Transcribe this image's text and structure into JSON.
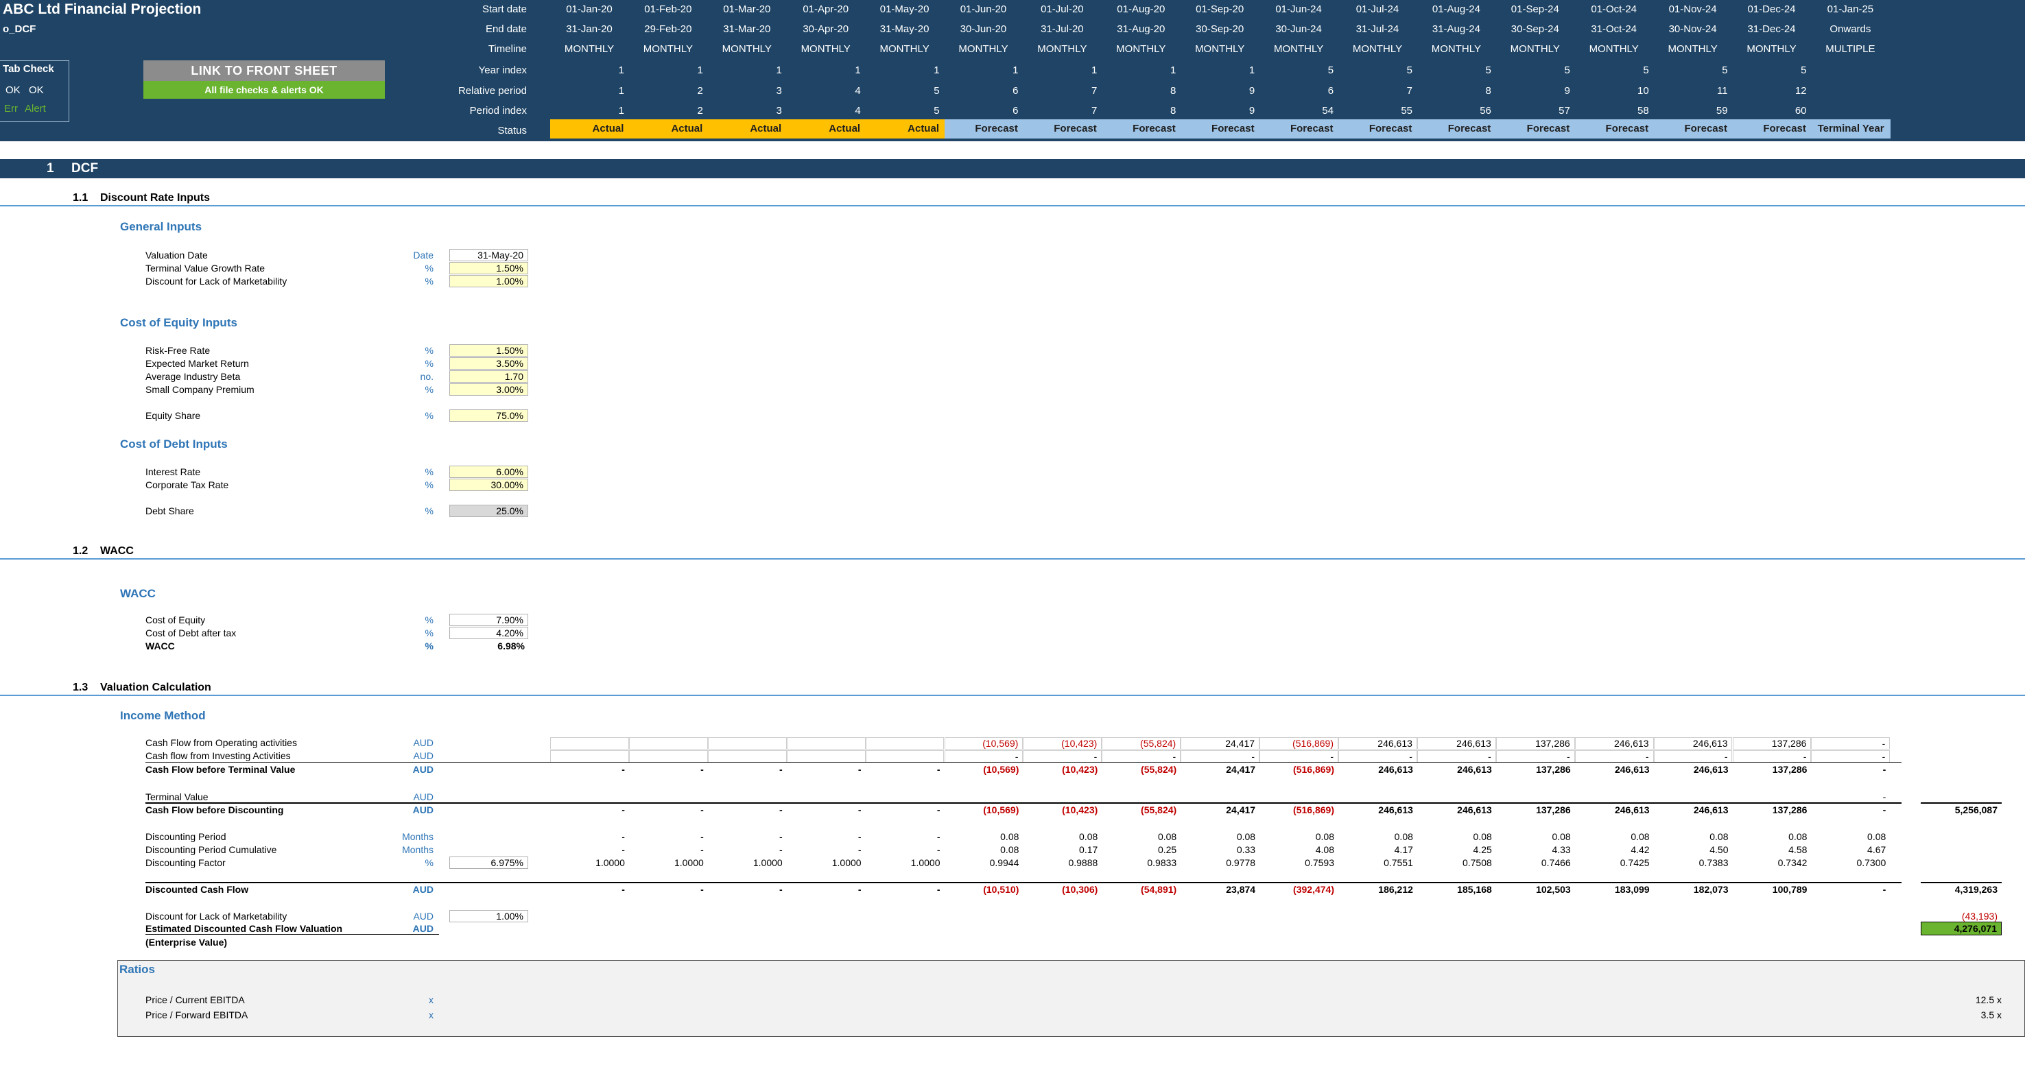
{
  "app_title": "ABC Ltd Financial Projection",
  "sheet_name": "o_DCF",
  "tab_check": {
    "title": "Tab Check",
    "ok1": "OK",
    "ok2": "OK",
    "err": "Err",
    "alert": "Alert"
  },
  "link_button": "LINK TO FRONT SHEET",
  "checks_status": "All file checks & alerts OK",
  "timeline_labels": {
    "start": "Start date",
    "end": "End date",
    "timeline": "Timeline",
    "year_index": "Year index",
    "relative": "Relative period",
    "period": "Period index",
    "status": "Status"
  },
  "periods": [
    {
      "start": "01-Jan-20",
      "end": "31-Jan-20",
      "tl": "MONTHLY",
      "yi": "1",
      "rp": "1",
      "pi": "1",
      "st": "Actual"
    },
    {
      "start": "01-Feb-20",
      "end": "29-Feb-20",
      "tl": "MONTHLY",
      "yi": "1",
      "rp": "2",
      "pi": "2",
      "st": "Actual"
    },
    {
      "start": "01-Mar-20",
      "end": "31-Mar-20",
      "tl": "MONTHLY",
      "yi": "1",
      "rp": "3",
      "pi": "3",
      "st": "Actual"
    },
    {
      "start": "01-Apr-20",
      "end": "30-Apr-20",
      "tl": "MONTHLY",
      "yi": "1",
      "rp": "4",
      "pi": "4",
      "st": "Actual"
    },
    {
      "start": "01-May-20",
      "end": "31-May-20",
      "tl": "MONTHLY",
      "yi": "1",
      "rp": "5",
      "pi": "5",
      "st": "Actual"
    },
    {
      "start": "01-Jun-20",
      "end": "30-Jun-20",
      "tl": "MONTHLY",
      "yi": "1",
      "rp": "6",
      "pi": "6",
      "st": "Forecast"
    },
    {
      "start": "01-Jul-20",
      "end": "31-Jul-20",
      "tl": "MONTHLY",
      "yi": "1",
      "rp": "7",
      "pi": "7",
      "st": "Forecast"
    },
    {
      "start": "01-Aug-20",
      "end": "31-Aug-20",
      "tl": "MONTHLY",
      "yi": "1",
      "rp": "8",
      "pi": "8",
      "st": "Forecast"
    },
    {
      "start": "01-Sep-20",
      "end": "30-Sep-20",
      "tl": "MONTHLY",
      "yi": "1",
      "rp": "9",
      "pi": "9",
      "st": "Forecast"
    },
    {
      "start": "01-Jun-24",
      "end": "30-Jun-24",
      "tl": "MONTHLY",
      "yi": "5",
      "rp": "6",
      "pi": "54",
      "st": "Forecast"
    },
    {
      "start": "01-Jul-24",
      "end": "31-Jul-24",
      "tl": "MONTHLY",
      "yi": "5",
      "rp": "7",
      "pi": "55",
      "st": "Forecast"
    },
    {
      "start": "01-Aug-24",
      "end": "31-Aug-24",
      "tl": "MONTHLY",
      "yi": "5",
      "rp": "8",
      "pi": "56",
      "st": "Forecast"
    },
    {
      "start": "01-Sep-24",
      "end": "30-Sep-24",
      "tl": "MONTHLY",
      "yi": "5",
      "rp": "9",
      "pi": "57",
      "st": "Forecast"
    },
    {
      "start": "01-Oct-24",
      "end": "31-Oct-24",
      "tl": "MONTHLY",
      "yi": "5",
      "rp": "10",
      "pi": "58",
      "st": "Forecast"
    },
    {
      "start": "01-Nov-24",
      "end": "30-Nov-24",
      "tl": "MONTHLY",
      "yi": "5",
      "rp": "11",
      "pi": "59",
      "st": "Forecast"
    },
    {
      "start": "01-Dec-24",
      "end": "31-Dec-24",
      "tl": "MONTHLY",
      "yi": "5",
      "rp": "12",
      "pi": "60",
      "st": "Forecast"
    },
    {
      "start": "01-Jan-25",
      "end": "Onwards",
      "tl": "MULTIPLE",
      "yi": "",
      "rp": "",
      "pi": "",
      "st": "Terminal Year"
    }
  ],
  "section": {
    "num": "1",
    "title": "DCF"
  },
  "sub_1_1": {
    "num": "1.1",
    "title": "Discount Rate Inputs"
  },
  "sub_1_2": {
    "num": "1.2",
    "title": "WACC"
  },
  "sub_1_3": {
    "num": "1.3",
    "title": "Valuation Calculation"
  },
  "general_inputs": {
    "title": "General Inputs",
    "rows": [
      {
        "label": "Valuation Date",
        "unit": "Date",
        "value": "31-May-20"
      },
      {
        "label": "Terminal Value Growth Rate",
        "unit": "%",
        "value": "1.50%"
      },
      {
        "label": "Discount for Lack of Marketability",
        "unit": "%",
        "value": "1.00%"
      }
    ]
  },
  "coe_inputs": {
    "title": "Cost of Equity Inputs",
    "rows": [
      {
        "label": "Risk-Free Rate",
        "unit": "%",
        "value": "1.50%"
      },
      {
        "label": "Expected Market Return",
        "unit": "%",
        "value": "3.50%"
      },
      {
        "label": "Average Industry Beta",
        "unit": "no.",
        "value": "1.70"
      },
      {
        "label": "Small Company Premium",
        "unit": "%",
        "value": "3.00%"
      }
    ],
    "equity_share": {
      "label": "Equity Share",
      "unit": "%",
      "value": "75.0%"
    }
  },
  "cod_inputs": {
    "title": "Cost of Debt Inputs",
    "rows": [
      {
        "label": "Interest Rate",
        "unit": "%",
        "value": "6.00%"
      },
      {
        "label": "Corporate Tax Rate",
        "unit": "%",
        "value": "30.00%"
      }
    ],
    "debt_share": {
      "label": "Debt Share",
      "unit": "%",
      "value": "25.0%"
    }
  },
  "wacc": {
    "title": "WACC",
    "rows": [
      {
        "label": "Cost of Equity",
        "unit": "%",
        "value": "7.90%"
      },
      {
        "label": "Cost of Debt after tax",
        "unit": "%",
        "value": "4.20%"
      },
      {
        "label": "WACC",
        "unit": "%",
        "value": "6.98%"
      }
    ]
  },
  "income": {
    "title": "Income Method",
    "cf_ops": {
      "label": "Cash Flow from Operating activities",
      "unit": "AUD",
      "values": [
        "",
        "",
        "",
        "",
        "",
        "(10,569)",
        "(10,423)",
        "(55,824)",
        "24,417",
        "(516,869)",
        "246,613",
        "246,613",
        "137,286",
        "246,613",
        "246,613",
        "137,286",
        "-"
      ]
    },
    "cf_inv": {
      "label": "Cash flow from Investing Activities",
      "unit": "AUD",
      "values": [
        "",
        "",
        "",
        "",
        "",
        "-",
        "-",
        "-",
        "-",
        "-",
        "-",
        "-",
        "-",
        "-",
        "-",
        "-",
        "-"
      ]
    },
    "cf_btv": {
      "label": "Cash Flow before Terminal Value",
      "unit": "AUD",
      "values": [
        "-",
        "-",
        "-",
        "-",
        "-",
        "(10,569)",
        "(10,423)",
        "(55,824)",
        "24,417",
        "(516,869)",
        "246,613",
        "246,613",
        "137,286",
        "246,613",
        "246,613",
        "137,286",
        "-"
      ]
    },
    "tv": {
      "label": "Terminal Value",
      "unit": "AUD",
      "values": [
        "",
        "",
        "",
        "",
        "",
        "",
        "",
        "",
        "",
        "",
        "",
        "",
        "",
        "",
        "",
        "",
        "-"
      ]
    },
    "cf_bd": {
      "label": "Cash Flow before Discounting",
      "unit": "AUD",
      "values": [
        "-",
        "-",
        "-",
        "-",
        "-",
        "(10,569)",
        "(10,423)",
        "(55,824)",
        "24,417",
        "(516,869)",
        "246,613",
        "246,613",
        "137,286",
        "246,613",
        "246,613",
        "137,286",
        "-"
      ],
      "total": "5,256,087"
    },
    "dp": {
      "label": "Discounting Period",
      "unit": "Months",
      "values": [
        "-",
        "-",
        "-",
        "-",
        "-",
        "0.08",
        "0.08",
        "0.08",
        "0.08",
        "0.08",
        "0.08",
        "0.08",
        "0.08",
        "0.08",
        "0.08",
        "0.08",
        "0.08"
      ]
    },
    "dpc": {
      "label": "Discounting Period Cumulative",
      "unit": "Months",
      "values": [
        "-",
        "-",
        "-",
        "-",
        "-",
        "0.08",
        "0.17",
        "0.25",
        "0.33",
        "4.08",
        "4.17",
        "4.25",
        "4.33",
        "4.42",
        "4.50",
        "4.58",
        "4.67"
      ]
    },
    "df": {
      "label": "Discounting Factor",
      "unit": "%",
      "input": "6.975%",
      "values": [
        "1.0000",
        "1.0000",
        "1.0000",
        "1.0000",
        "1.0000",
        "0.9944",
        "0.9888",
        "0.9833",
        "0.9778",
        "0.7593",
        "0.7551",
        "0.7508",
        "0.7466",
        "0.7425",
        "0.7383",
        "0.7342",
        "0.7300"
      ]
    },
    "dcf": {
      "label": "Discounted Cash Flow",
      "unit": "AUD",
      "values": [
        "-",
        "-",
        "-",
        "-",
        "-",
        "(10,510)",
        "(10,306)",
        "(54,891)",
        "23,874",
        "(392,474)",
        "186,212",
        "185,168",
        "102,503",
        "183,099",
        "182,073",
        "100,789",
        "-"
      ],
      "total": "4,319,263"
    },
    "dlm": {
      "label": "Discount for Lack of Marketability",
      "unit": "AUD",
      "input": "1.00%",
      "total": "(43,193)"
    },
    "edcf": {
      "label": "Estimated Discounted Cash Flow Valuation",
      "unit": "AUD",
      "total": "4,276,071"
    },
    "ev_note": "(Enterprise Value)"
  },
  "ratios": {
    "title": "Ratios",
    "rows": [
      {
        "label": "Price / Current EBITDA",
        "unit": "x",
        "value": "12.5 x"
      },
      {
        "label": "Price / Forward EBITDA",
        "unit": "x",
        "value": "3.5 x"
      }
    ]
  },
  "colors": {
    "header_bg": "#1f4465",
    "actual": "#ffc000",
    "forecast": "#9dc3e6",
    "ok_green": "#6ab42f",
    "blue_text": "#2e75b6",
    "input_yellow": "#ffffcc"
  }
}
